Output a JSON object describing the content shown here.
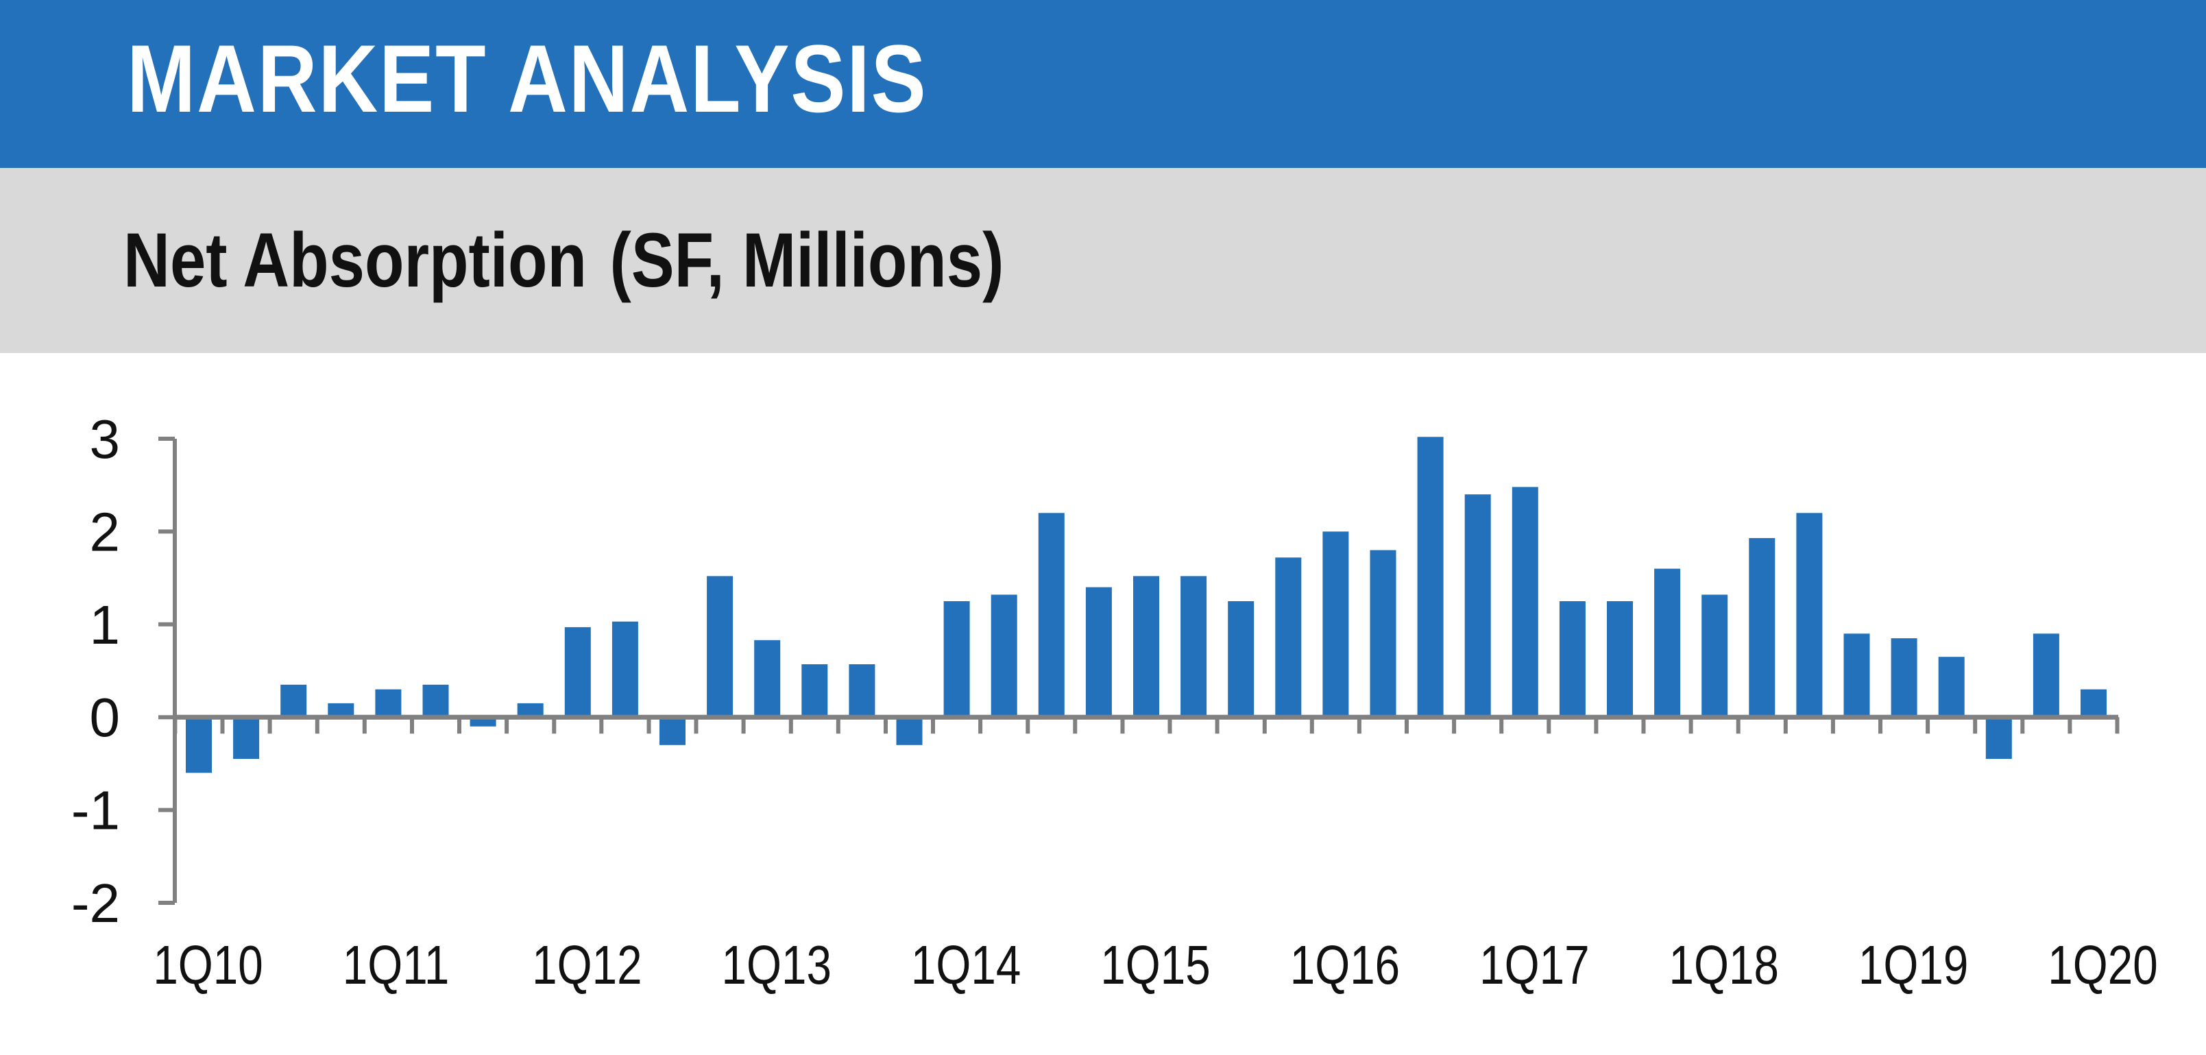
{
  "header": {
    "title": "MARKET ANALYSIS"
  },
  "chart_title": {
    "main": "Net Absorption",
    "unit": "(SF, Millions)"
  },
  "colors": {
    "header_band": "#2371bb",
    "sub_band": "#d9d9d9",
    "bar": "#2371bb",
    "axis": "#808080"
  },
  "chart_data": {
    "type": "bar",
    "title": "Net Absorption",
    "unit": "SF, Millions",
    "ylim": [
      -2,
      3
    ],
    "yticks": [
      3,
      2,
      1,
      0,
      -1,
      -2
    ],
    "grid": false,
    "legend": "none",
    "x_tick_labels": [
      "1Q10",
      "1Q11",
      "1Q12",
      "1Q13",
      "1Q14",
      "1Q15",
      "1Q16",
      "1Q17",
      "1Q18",
      "1Q19",
      "1Q20"
    ],
    "categories": [
      "1Q10",
      "2Q10",
      "3Q10",
      "4Q10",
      "1Q11",
      "2Q11",
      "3Q11",
      "4Q11",
      "1Q12",
      "2Q12",
      "3Q12",
      "4Q12",
      "1Q13",
      "2Q13",
      "3Q13",
      "4Q13",
      "1Q14",
      "2Q14",
      "3Q14",
      "4Q14",
      "1Q15",
      "2Q15",
      "3Q15",
      "4Q15",
      "1Q16",
      "2Q16",
      "3Q16",
      "4Q16",
      "1Q17",
      "2Q17",
      "3Q17",
      "4Q17",
      "1Q18",
      "2Q18",
      "3Q18",
      "4Q18",
      "1Q19",
      "2Q19",
      "3Q19",
      "4Q19",
      "1Q20"
    ],
    "values": [
      -0.6,
      -0.45,
      0.35,
      0.15,
      0.3,
      0.35,
      -0.1,
      0.15,
      0.97,
      1.03,
      -0.3,
      1.52,
      0.83,
      0.57,
      0.57,
      -0.3,
      1.25,
      1.32,
      2.2,
      1.4,
      1.52,
      1.52,
      1.25,
      1.72,
      2.0,
      1.8,
      3.02,
      2.4,
      2.48,
      1.25,
      1.25,
      1.6,
      1.32,
      1.93,
      2.2,
      0.9,
      0.85,
      0.65,
      -0.45,
      0.9,
      0.3
    ]
  }
}
